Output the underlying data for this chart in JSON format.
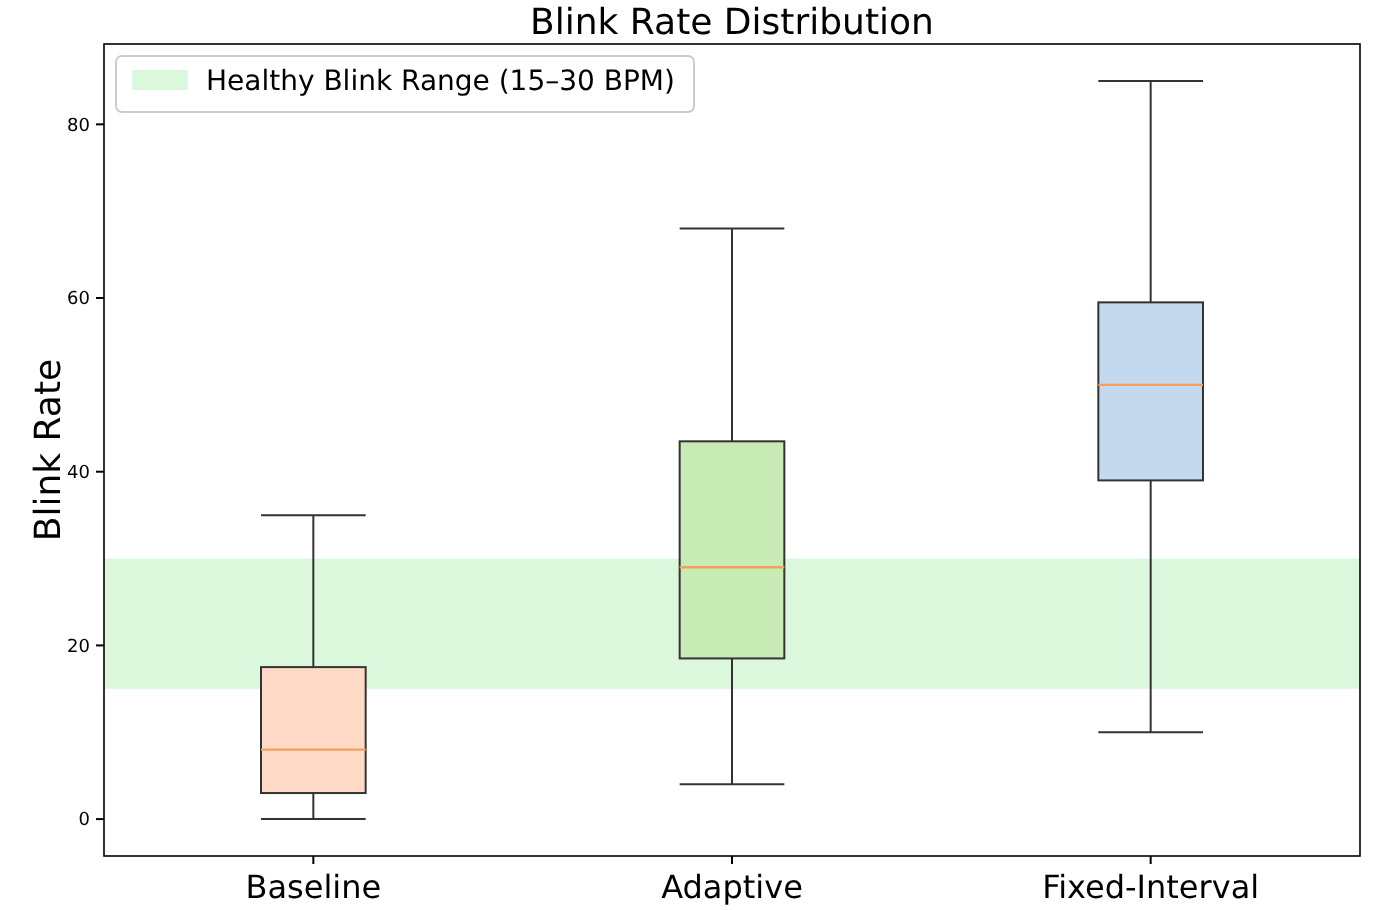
{
  "chart_data": {
    "type": "box",
    "title": "Blink Rate Distribution",
    "ylabel": "Blink Rate",
    "categories": [
      "Baseline",
      "Adaptive",
      "Fixed-Interval"
    ],
    "boxes": [
      {
        "low": 0,
        "q1": 3,
        "median": 8,
        "q3": 17.5,
        "high": 35
      },
      {
        "low": 4,
        "q1": 18.5,
        "median": 29,
        "q3": 43.5,
        "high": 68
      },
      {
        "low": 10,
        "q1": 39,
        "median": 50,
        "q3": 59.5,
        "high": 85
      }
    ],
    "colors": [
      "#ffdac6",
      "#c8eab4",
      "#c4d9ee"
    ],
    "ylim": [
      -4.25,
      89.25
    ],
    "yticks": [
      0,
      20,
      40,
      60,
      80
    ],
    "bands": [
      {
        "axis": "y",
        "from": 15,
        "to": 30,
        "label": "Healthy Blink Range (15–30 BPM)",
        "color": "#dbf7dc"
      }
    ],
    "legend": "top left",
    "grid": false
  }
}
